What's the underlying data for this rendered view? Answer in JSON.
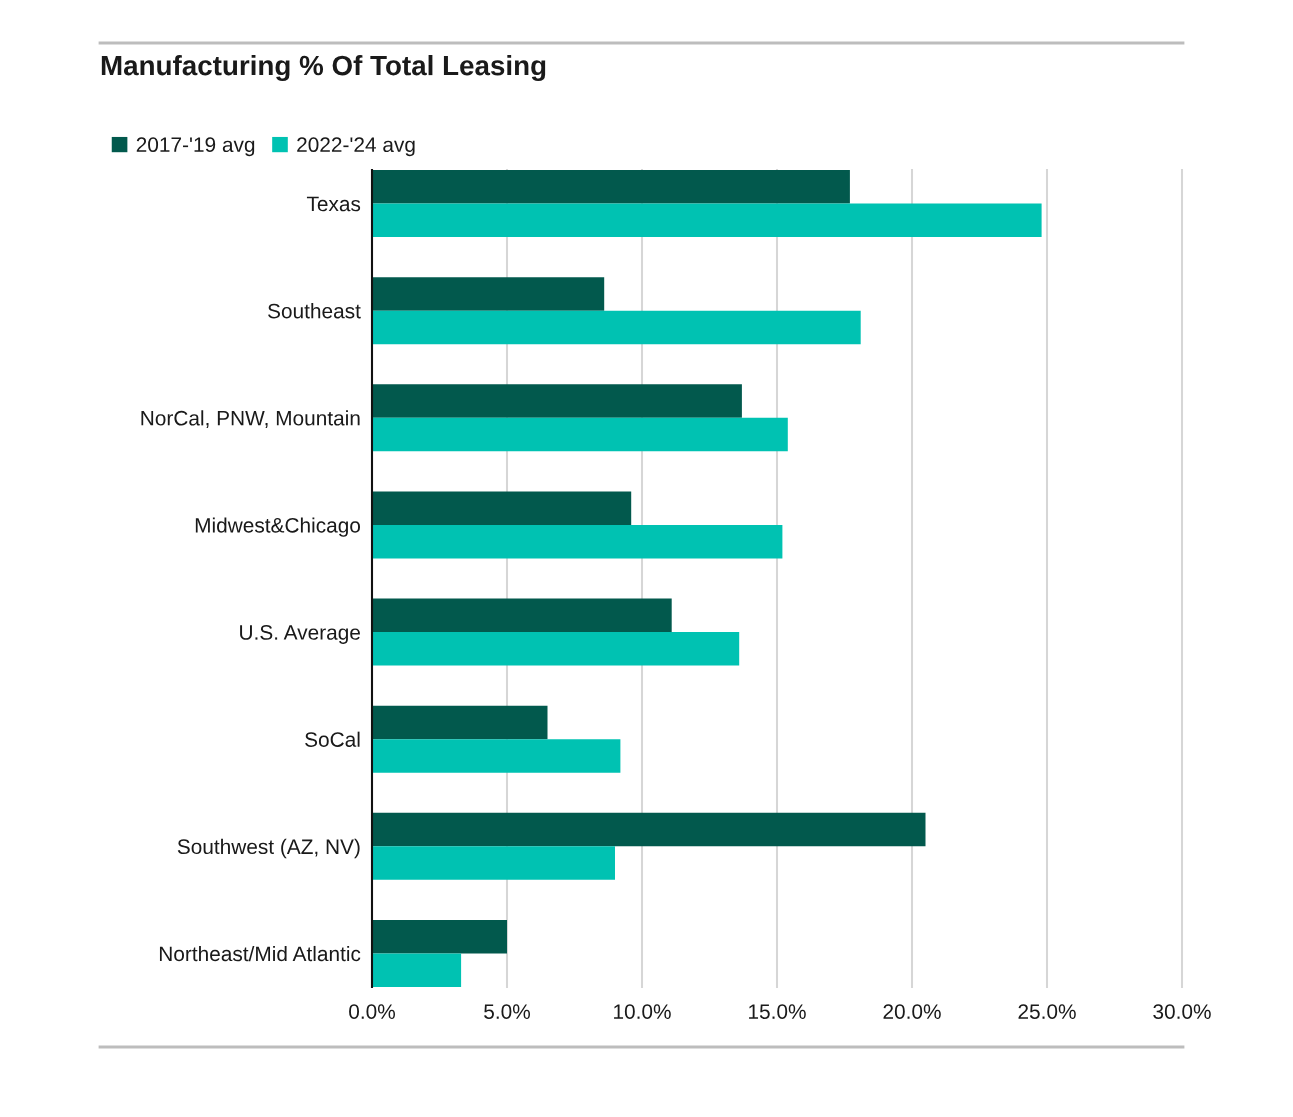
{
  "chart_data": {
    "type": "bar",
    "orientation": "horizontal",
    "title": "Manufacturing % Of Total Leasing",
    "categories": [
      "Texas",
      "Southeast",
      "NorCal, PNW, Mountain",
      "Midwest&Chicago",
      "U.S. Average",
      "SoCal",
      "Southwest (AZ, NV)",
      "Northeast/Mid Atlantic"
    ],
    "series": [
      {
        "name": "2017-'19 avg",
        "color": "#02594d",
        "values": [
          17.7,
          8.6,
          13.7,
          9.6,
          11.1,
          6.5,
          20.5,
          5.0
        ]
      },
      {
        "name": "2022-'24 avg",
        "color": "#00c2b2",
        "values": [
          24.8,
          18.1,
          15.4,
          15.2,
          13.6,
          9.2,
          9.0,
          3.3
        ]
      }
    ],
    "xlim": [
      0,
      30
    ],
    "xticks": [
      {
        "value": 0,
        "label": "0.0%"
      },
      {
        "value": 5,
        "label": "5.0%"
      },
      {
        "value": 10,
        "label": "10.0%"
      },
      {
        "value": 15,
        "label": "15.0%"
      },
      {
        "value": 20,
        "label": "20.0%"
      },
      {
        "value": 25,
        "label": "25.0%"
      },
      {
        "value": 30,
        "label": "30.0%"
      }
    ],
    "grid": "x",
    "legend": "top left"
  }
}
